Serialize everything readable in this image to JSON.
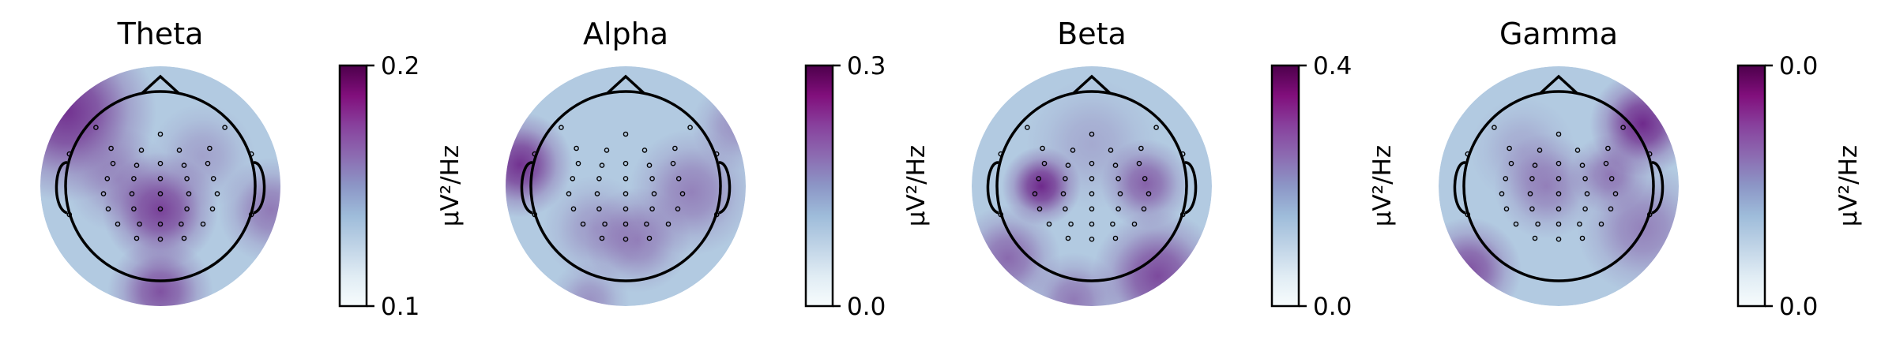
{
  "chart_data": [
    {
      "type": "heatmap",
      "title": "Theta",
      "colorbar": {
        "label": "µV²/Hz",
        "vmin": 0.1,
        "vmax": 0.2,
        "tick_labels": [
          "0.2",
          "0.1"
        ],
        "colormap": "BuPu"
      },
      "blobs": [
        {
          "x": -0.78,
          "y": 0.62,
          "s": 0.34,
          "a": 0.95
        },
        {
          "x": 0.0,
          "y": -0.2,
          "s": 0.22,
          "a": 0.85
        },
        {
          "x": 0.0,
          "y": -0.88,
          "s": 0.2,
          "a": 0.75
        },
        {
          "x": -0.35,
          "y": 0.05,
          "s": 0.2,
          "a": 0.35
        },
        {
          "x": 0.92,
          "y": -0.2,
          "s": 0.2,
          "a": 0.5
        },
        {
          "x": 0.35,
          "y": 0.25,
          "s": 0.2,
          "a": 0.25
        }
      ],
      "base": 0.3
    },
    {
      "type": "heatmap",
      "title": "Alpha",
      "colorbar": {
        "label": "µV²/Hz",
        "vmin": 0.0,
        "vmax": 0.3,
        "tick_labels": [
          "0.3",
          "0.0"
        ],
        "colormap": "BuPu"
      },
      "blobs": [
        {
          "x": -0.88,
          "y": 0.18,
          "s": 0.2,
          "a": 0.95
        },
        {
          "x": 0.55,
          "y": -0.05,
          "s": 0.24,
          "a": 0.45
        },
        {
          "x": 0.1,
          "y": -0.45,
          "s": 0.2,
          "a": 0.45
        },
        {
          "x": -0.25,
          "y": -0.35,
          "s": 0.2,
          "a": 0.3
        },
        {
          "x": -0.3,
          "y": -0.95,
          "s": 0.15,
          "a": 0.35
        },
        {
          "x": 0.92,
          "y": 0.5,
          "s": 0.17,
          "a": 0.35
        }
      ],
      "base": 0.3
    },
    {
      "type": "heatmap",
      "title": "Beta",
      "colorbar": {
        "label": "µV²/Hz",
        "vmin": 0.0,
        "vmax": 0.4,
        "tick_labels": [
          "0.4",
          "0.0"
        ],
        "colormap": "BuPu"
      },
      "blobs": [
        {
          "x": -0.42,
          "y": 0.0,
          "s": 0.15,
          "a": 1.0
        },
        {
          "x": 0.45,
          "y": 0.02,
          "s": 0.17,
          "a": 0.65
        },
        {
          "x": 0.55,
          "y": -0.75,
          "s": 0.25,
          "a": 0.8
        },
        {
          "x": -0.7,
          "y": -0.6,
          "s": 0.2,
          "a": 0.6
        },
        {
          "x": -0.15,
          "y": -0.95,
          "s": 0.18,
          "a": 0.5
        },
        {
          "x": 0.0,
          "y": 0.35,
          "s": 0.25,
          "a": 0.2
        }
      ],
      "base": 0.3
    },
    {
      "type": "heatmap",
      "title": "Gamma",
      "colorbar": {
        "label": "µV²/Hz",
        "vmin": 0.0,
        "vmax": 0.0,
        "tick_labels": [
          "0.0",
          "0.0"
        ],
        "colormap": "BuPu"
      },
      "blobs": [
        {
          "x": 0.7,
          "y": 0.52,
          "s": 0.2,
          "a": 1.0
        },
        {
          "x": 0.42,
          "y": 0.1,
          "s": 0.15,
          "a": 0.5
        },
        {
          "x": -0.75,
          "y": -0.7,
          "s": 0.2,
          "a": 0.75
        },
        {
          "x": 0.7,
          "y": -0.35,
          "s": 0.25,
          "a": 0.45
        },
        {
          "x": -0.1,
          "y": 0.0,
          "s": 0.2,
          "a": 0.45
        },
        {
          "x": -0.3,
          "y": 0.3,
          "s": 0.2,
          "a": 0.2
        }
      ],
      "base": 0.3
    }
  ]
}
